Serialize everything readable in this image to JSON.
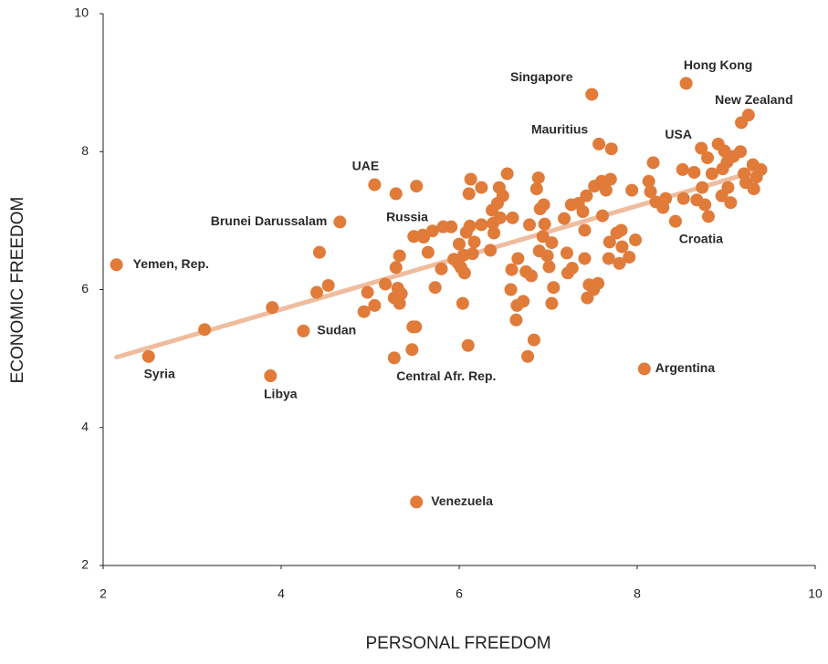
{
  "chart_data": {
    "type": "scatter",
    "xlabel": "PERSONAL FREEDOM",
    "ylabel": "ECONOMIC FREEDOM",
    "xlim": [
      2,
      10
    ],
    "ylim": [
      2,
      10
    ],
    "xticks": [
      2,
      4,
      6,
      8,
      10
    ],
    "yticks": [
      2,
      4,
      6,
      8,
      10
    ],
    "color": "#e07b39",
    "x": [
      3.14,
      3.9,
      4.4,
      4.53,
      4.43,
      4.93,
      4.97,
      5.05,
      5.17,
      5.29,
      5.33,
      5.29,
      5.31,
      5.35,
      5.33,
      5.27,
      5.47,
      5.48,
      5.51,
      5.52,
      5.49,
      5.6,
      5.65,
      5.7,
      5.73,
      5.8,
      5.82,
      5.91,
      5.94,
      5.99,
      6.0,
      6.02,
      6.05,
      6.06,
      6.04,
      6.1,
      6.08,
      6.12,
      6.13,
      6.11,
      6.15,
      6.17,
      6.25,
      6.25,
      6.35,
      6.37,
      6.38,
      6.39,
      6.43,
      6.45,
      6.46,
      6.49,
      6.54,
      6.58,
      6.59,
      6.6,
      6.64,
      6.65,
      6.66,
      6.72,
      6.75,
      6.77,
      6.79,
      6.81,
      6.84,
      6.87,
      6.89,
      6.9,
      6.91,
      6.94,
      6.95,
      6.96,
      6.99,
      7.01,
      7.04,
      7.04,
      7.06,
      7.18,
      7.21,
      7.22,
      7.26,
      7.27,
      7.34,
      7.39,
      7.41,
      7.41,
      7.43,
      7.44,
      7.46,
      7.51,
      7.52,
      7.56,
      7.6,
      7.61,
      7.65,
      7.68,
      7.7,
      7.71,
      7.69,
      7.77,
      7.8,
      7.82,
      7.83,
      7.91,
      7.94,
      7.98,
      8.13,
      8.15,
      8.18,
      8.21,
      8.29,
      8.32,
      8.51,
      8.52,
      8.64,
      8.67,
      8.73,
      8.76,
      8.79,
      8.8,
      8.84,
      8.91,
      8.95,
      8.96,
      8.98,
      9.01,
      9.02,
      9.05,
      9.08,
      9.16,
      9.17,
      9.2,
      9.22,
      9.3,
      9.31,
      9.34,
      9.39
    ],
    "y": [
      5.42,
      5.74,
      5.96,
      6.06,
      6.54,
      5.68,
      5.96,
      5.77,
      6.08,
      6.32,
      6.49,
      7.39,
      6.02,
      5.94,
      5.8,
      5.88,
      5.13,
      5.46,
      5.46,
      7.5,
      6.77,
      6.76,
      6.54,
      6.85,
      6.03,
      6.3,
      6.91,
      6.91,
      6.44,
      6.38,
      6.66,
      6.32,
      6.5,
      6.24,
      5.8,
      5.19,
      6.83,
      6.92,
      7.6,
      7.39,
      6.52,
      6.69,
      7.48,
      6.94,
      6.57,
      7.15,
      6.96,
      6.82,
      7.25,
      7.48,
      7.04,
      7.36,
      7.68,
      6.0,
      6.29,
      7.04,
      5.56,
      5.77,
      6.45,
      5.83,
      6.26,
      5.03,
      6.94,
      6.2,
      5.27,
      7.46,
      7.62,
      6.56,
      7.17,
      6.77,
      7.23,
      6.95,
      6.49,
      6.33,
      5.8,
      6.68,
      6.03,
      7.03,
      6.53,
      6.24,
      7.23,
      6.31,
      7.25,
      7.13,
      6.86,
      6.45,
      7.36,
      5.88,
      6.07,
      6.0,
      7.5,
      6.09,
      7.57,
      7.07,
      7.44,
      6.45,
      7.6,
      8.04,
      6.69,
      6.82,
      6.38,
      6.86,
      6.62,
      6.47,
      7.44,
      6.72,
      7.57,
      7.42,
      7.84,
      7.27,
      7.19,
      7.32,
      7.74,
      7.32,
      7.7,
      7.3,
      7.48,
      7.23,
      7.91,
      7.06,
      7.68,
      8.11,
      7.36,
      7.75,
      8.01,
      7.85,
      7.48,
      7.26,
      7.93,
      8.0,
      8.42,
      7.68,
      7.55,
      7.81,
      7.46,
      7.63,
      7.74
    ],
    "annotations": [
      {
        "text": "Yemen, Rep.",
        "x": 2.15,
        "y": 6.36
      },
      {
        "text": "Syria",
        "x": 2.51,
        "y": 5.03
      },
      {
        "text": "Libya",
        "x": 3.88,
        "y": 4.75
      },
      {
        "text": "Sudan",
        "x": 4.25,
        "y": 5.4
      },
      {
        "text": "Brunei Darussalam",
        "x": 4.66,
        "y": 6.98
      },
      {
        "text": "UAE",
        "x": 5.05,
        "y": 7.52
      },
      {
        "text": "Russia",
        "x": 5.59,
        "y": 6.79
      },
      {
        "text": "Central Afr. Rep.",
        "x": 5.27,
        "y": 5.01
      },
      {
        "text": "Venezuela",
        "x": 5.52,
        "y": 2.92
      },
      {
        "text": "Singapore",
        "x": 7.49,
        "y": 8.83
      },
      {
        "text": "Mauritius",
        "x": 7.57,
        "y": 8.11
      },
      {
        "text": "Hong Kong",
        "x": 8.55,
        "y": 8.99
      },
      {
        "text": "New Zealand",
        "x": 9.25,
        "y": 8.53
      },
      {
        "text": "USA",
        "x": 8.72,
        "y": 8.05
      },
      {
        "text": "Croatia",
        "x": 8.43,
        "y": 6.99
      },
      {
        "text": "Argentina",
        "x": 8.08,
        "y": 4.85
      }
    ],
    "trendline": {
      "color": "#f0bc9e",
      "x": [
        2.15,
        9.35
      ],
      "y": [
        5.02,
        7.72
      ]
    }
  }
}
